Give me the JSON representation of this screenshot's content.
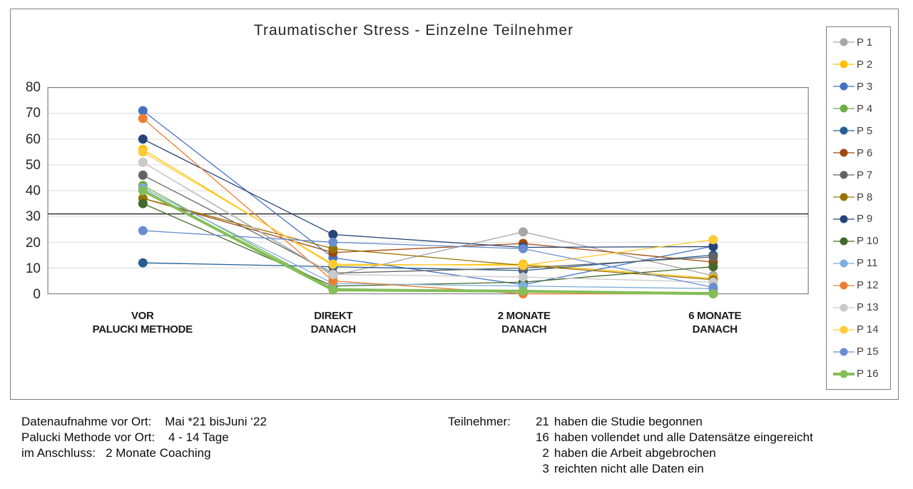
{
  "chart_data": {
    "type": "line",
    "title": "Traumatischer Stress - Einzelne Teilnehmer",
    "categories": [
      [
        "VOR",
        "PALUCKI METHODE"
      ],
      [
        "DIREKT",
        "DANACH"
      ],
      [
        "2 MONATE",
        "DANACH"
      ],
      [
        "6 MONATE",
        "DANACH"
      ]
    ],
    "xlabel": "",
    "ylabel": "",
    "ylim": [
      0,
      80
    ],
    "yticks": [
      0,
      10,
      20,
      30,
      40,
      50,
      60,
      70,
      80
    ],
    "grid": true,
    "reference_line": 31,
    "legend_position": "right",
    "series": [
      {
        "name": "P 1",
        "color": "#A6A6A6",
        "width": 1.3,
        "values": [
          51,
          7,
          24,
          7
        ]
      },
      {
        "name": "P 2",
        "color": "#FFC000",
        "width": 1.3,
        "values": [
          56,
          11,
          11.5,
          6
        ]
      },
      {
        "name": "P 3",
        "color": "#4472C4",
        "width": 1.3,
        "values": [
          71,
          14,
          3.5,
          18.5
        ]
      },
      {
        "name": "P 4",
        "color": "#70AD47",
        "width": 1.3,
        "values": [
          42,
          2,
          1,
          0.5
        ]
      },
      {
        "name": "P 5",
        "color": "#255E91",
        "width": 1.3,
        "values": [
          12,
          10.5,
          9,
          15
        ]
      },
      {
        "name": "P 6",
        "color": "#9E480E",
        "width": 1.3,
        "values": [
          37,
          16,
          19.5,
          12.3
        ]
      },
      {
        "name": "P 7",
        "color": "#636363",
        "width": 1.3,
        "values": [
          46,
          8,
          10,
          14.3
        ]
      },
      {
        "name": "P 8",
        "color": "#997300",
        "width": 1.3,
        "values": [
          37,
          17.5,
          11,
          5.5
        ]
      },
      {
        "name": "P 9",
        "color": "#264478",
        "width": 1.3,
        "values": [
          60,
          23,
          18,
          18.3
        ]
      },
      {
        "name": "P 10",
        "color": "#43682B",
        "width": 1.3,
        "values": [
          35,
          3,
          4.5,
          10.5
        ]
      },
      {
        "name": "P 11",
        "color": "#7CAFDD",
        "width": 1.3,
        "values": [
          41,
          4,
          3,
          2
        ]
      },
      {
        "name": "P 12",
        "color": "#ED7D31",
        "width": 1.3,
        "values": [
          68,
          5,
          0,
          0
        ]
      },
      {
        "name": "P 13",
        "color": "#C9C9C9",
        "width": 1.3,
        "values": [
          51,
          7.5,
          6.5,
          4.5
        ]
      },
      {
        "name": "P 14",
        "color": "#FFCB33",
        "width": 1.3,
        "values": [
          55,
          11.5,
          11,
          21
        ]
      },
      {
        "name": "P 15",
        "color": "#698ED0",
        "width": 1.3,
        "values": [
          24.5,
          20,
          17.5,
          2.5
        ]
      },
      {
        "name": "P 16",
        "color": "#84BE57",
        "width": 4,
        "values": [
          40,
          1.5,
          1,
          0
        ]
      }
    ]
  },
  "footer": {
    "left_lines": [
      "Datenaufnahme vor Ort:    Mai *21 bisJuni ‘22",
      "Palucki Methode vor Ort:    4 - 14 Tage",
      "im Anschluss:   2 Monate Coaching"
    ],
    "right": {
      "label": "Teilnehmer:",
      "lines": [
        {
          "num": "21",
          "text": "haben die Studie begonnen"
        },
        {
          "num": "16",
          "text": "haben vollendet und alle Datensätze eingereicht"
        },
        {
          "num": "2",
          "text": "haben die Arbeit abgebrochen"
        },
        {
          "num": "3",
          "text": "reichten nicht alle Daten ein"
        }
      ]
    }
  }
}
